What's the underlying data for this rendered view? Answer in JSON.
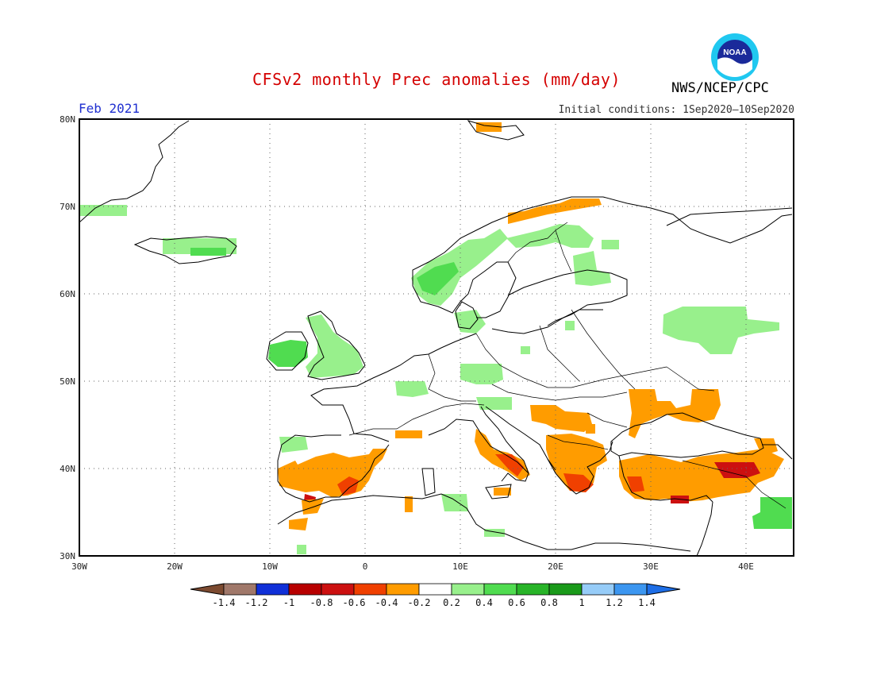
{
  "header": {
    "title": "CFSv2 monthly Prec anomalies (mm/day)",
    "organization": "NWS/NCEP/CPC",
    "logo_text": "NOAA",
    "month": "Feb 2021",
    "initial_conditions": "Initial conditions: 1Sep2020–10Sep2020"
  },
  "map": {
    "lon_range": [
      -30,
      45
    ],
    "lat_range": [
      30,
      80
    ],
    "lon_ticks": [
      "30W",
      "20W",
      "10W",
      "0",
      "10E",
      "20E",
      "30E",
      "40E"
    ],
    "lat_ticks": [
      "30N",
      "40N",
      "50N",
      "60N",
      "70N",
      "80N"
    ],
    "grid": "dotted every 10 degrees",
    "anomaly_regions": [
      {
        "name": "Iberia southeast",
        "category": "-0.4 to -0.2",
        "color": "#ff9c00"
      },
      {
        "name": "Iberia southeast coast",
        "category": "-0.6 to -0.4",
        "color": "#f04000"
      },
      {
        "name": "Strait of Gibraltar",
        "category": "-0.8 to -0.6",
        "color": "#cc1010"
      },
      {
        "name": "Italy south",
        "category": "-0.4 to -0.2",
        "color": "#ff9c00"
      },
      {
        "name": "Balkans",
        "category": "-0.4 to -0.2",
        "color": "#ff9c00"
      },
      {
        "name": "Greece",
        "category": "-0.6 to -0.4",
        "color": "#f04000"
      },
      {
        "name": "Ukraine south / Black Sea",
        "category": "-0.4 to -0.2",
        "color": "#ff9c00"
      },
      {
        "name": "Turkey",
        "category": "-0.4 to -0.2",
        "color": "#ff9c00"
      },
      {
        "name": "Turkey east",
        "category": "-0.8 to -0.6",
        "color": "#cc1010"
      },
      {
        "name": "Northern Norway",
        "category": "-0.4 to -0.2",
        "color": "#ff9c00"
      },
      {
        "name": "Svalbard",
        "category": "-0.4 to -0.2",
        "color": "#ff9c00"
      },
      {
        "name": "Norway west coast",
        "category": "0.2 to 0.4",
        "color": "#98f08c"
      },
      {
        "name": "Norway coastal",
        "category": "0.4 to 0.6",
        "color": "#50dc50"
      },
      {
        "name": "Ireland",
        "category": "0.4 to 0.6",
        "color": "#50dc50"
      },
      {
        "name": "Great Britain",
        "category": "0.2 to 0.4",
        "color": "#98f08c"
      },
      {
        "name": "Russia west",
        "category": "0.2 to 0.4",
        "color": "#98f08c"
      },
      {
        "name": "Finland",
        "category": "0.2 to 0.4",
        "color": "#98f08c"
      },
      {
        "name": "Iceland",
        "category": "0.2 to 0.4",
        "color": "#98f08c"
      },
      {
        "name": "Middle East",
        "category": "0.4 to 0.6",
        "color": "#50dc50"
      }
    ]
  },
  "colorbar": {
    "labels": [
      "-1.4",
      "-1.2",
      "-1",
      "-0.8",
      "-0.6",
      "-0.4",
      "-0.2",
      "0.2",
      "0.4",
      "0.6",
      "0.8",
      "1",
      "1.2",
      "1.4"
    ],
    "colors": [
      "#7c4a30",
      "#a0786a",
      "#1030d8",
      "#b80000",
      "#cc1010",
      "#f04000",
      "#ff9c00",
      "#ffffff",
      "#98f08c",
      "#50dc50",
      "#28b428",
      "#1a9a1a",
      "#96ccf8",
      "#3c96f0",
      "#1e6ee6"
    ]
  }
}
